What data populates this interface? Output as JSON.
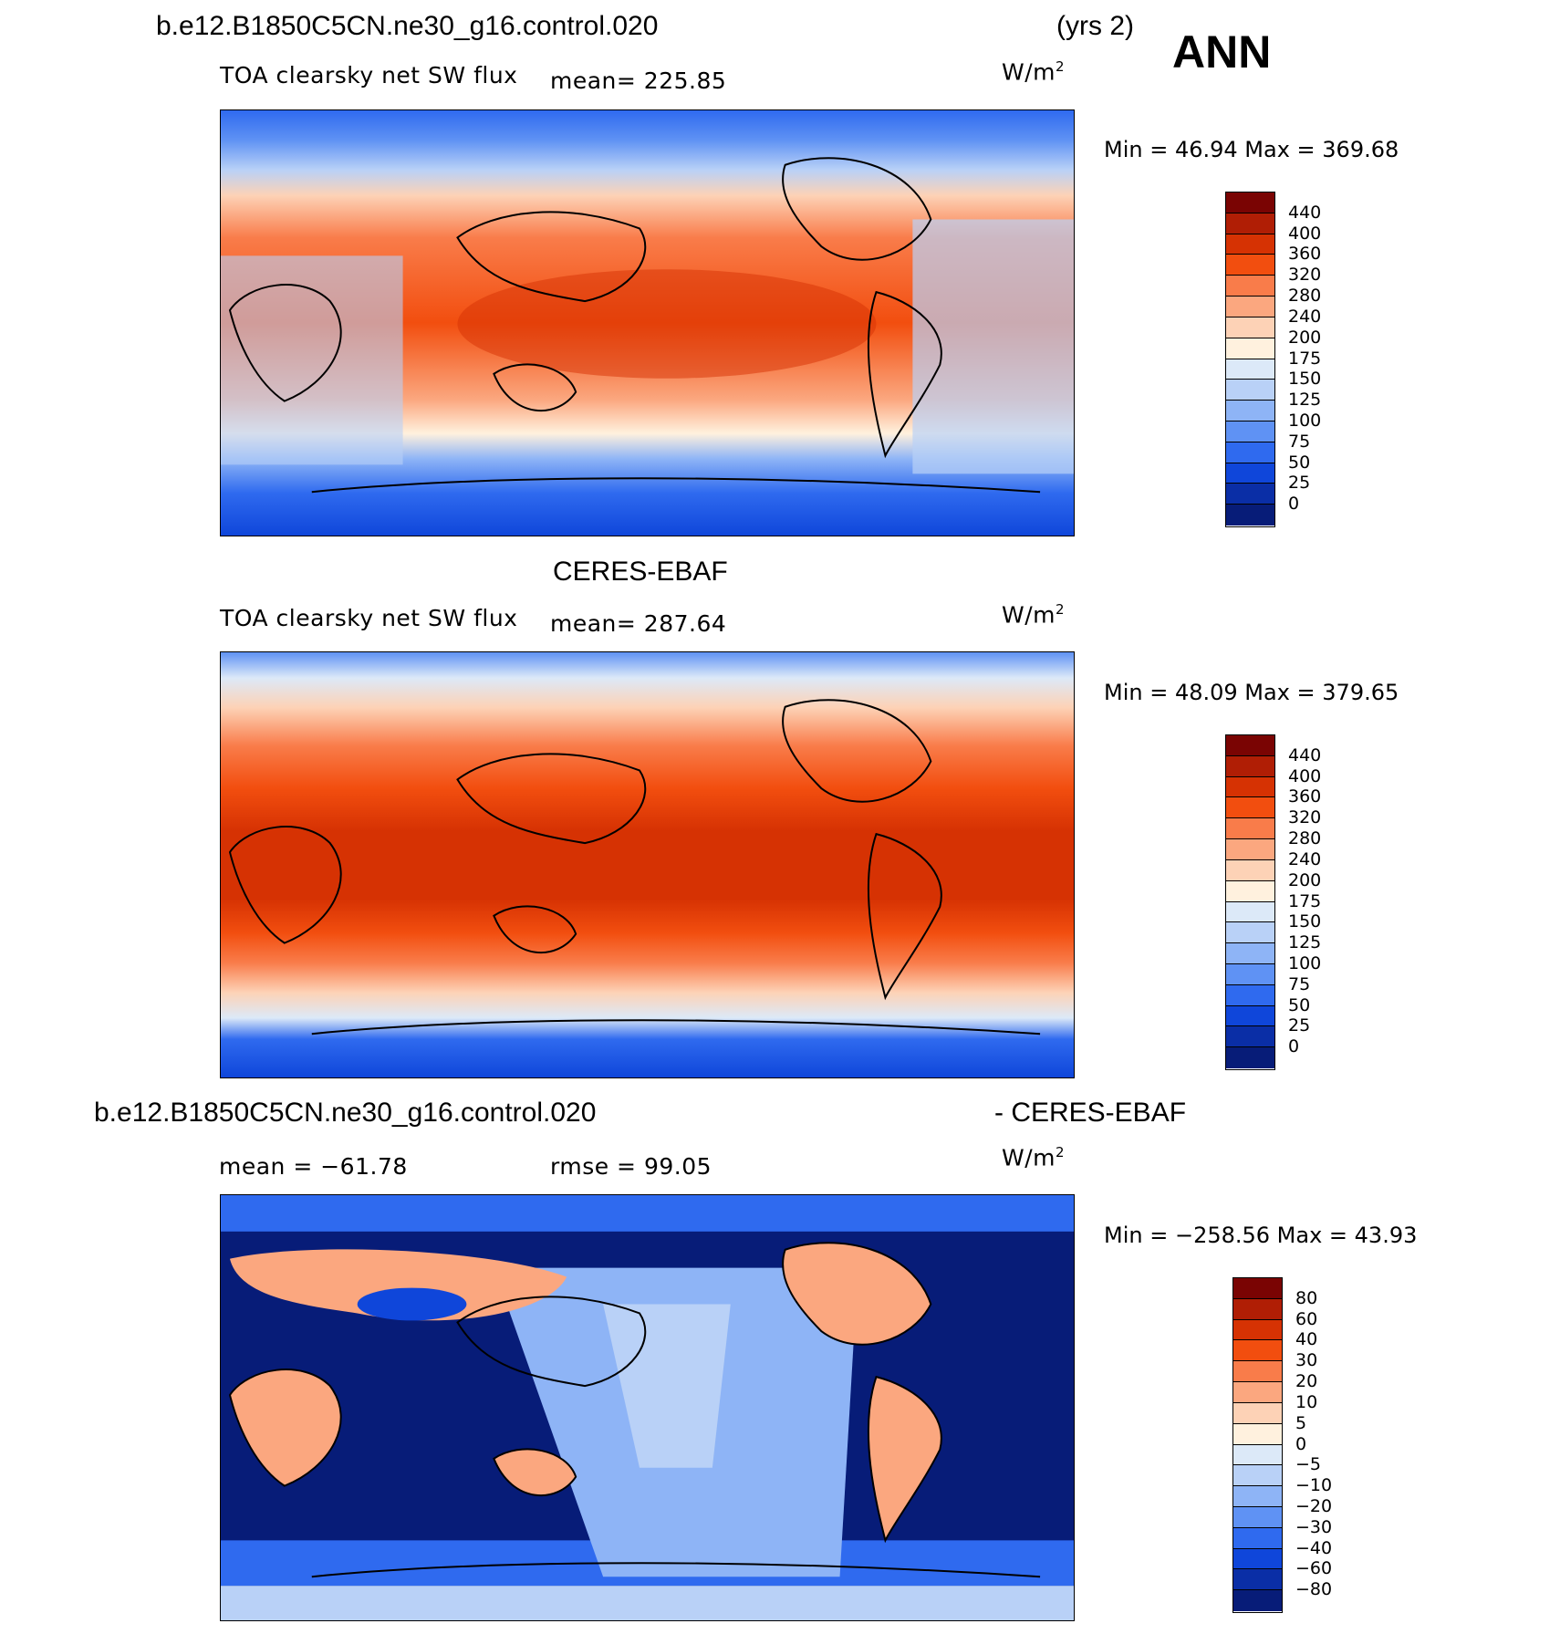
{
  "header": {
    "case": "b.e12.B1850C5CN.ne30_g16.control.020",
    "years": "(yrs 2)",
    "season": "ANN"
  },
  "panels": [
    {
      "id": "model",
      "title": "",
      "variable": "TOA clearsky net SW flux",
      "mean": "mean= 225.85",
      "units_base": "W/m",
      "units_exp": "2",
      "minmax": "Min =   46.94  Max =  369.68",
      "colorbar_ticks": [
        "440",
        "400",
        "360",
        "320",
        "280",
        "240",
        "200",
        "175",
        "150",
        "125",
        "100",
        "75",
        "50",
        "25",
        "0"
      ],
      "colors": [
        "#7a0403",
        "#b01e05",
        "#d63203",
        "#f24e0f",
        "#f97c4a",
        "#fba77f",
        "#fdd2b6",
        "#fff1de",
        "#dce9f8",
        "#b9d1f7",
        "#8eb4f6",
        "#5f92f4",
        "#2f6aef",
        "#0f46da",
        "#0a2ea6",
        "#071c78"
      ]
    },
    {
      "id": "obs",
      "title": "CERES-EBAF",
      "variable": "TOA clearsky net SW flux",
      "mean": "mean= 287.64",
      "units_base": "W/m",
      "units_exp": "2",
      "minmax": "Min =   48.09  Max =  379.65",
      "colorbar_ticks": [
        "440",
        "400",
        "360",
        "320",
        "280",
        "240",
        "200",
        "175",
        "150",
        "125",
        "100",
        "75",
        "50",
        "25",
        "0"
      ],
      "colors": [
        "#7a0403",
        "#b01e05",
        "#d63203",
        "#f24e0f",
        "#f97c4a",
        "#fba77f",
        "#fdd2b6",
        "#fff1de",
        "#dce9f8",
        "#b9d1f7",
        "#8eb4f6",
        "#5f92f4",
        "#2f6aef",
        "#0f46da",
        "#0a2ea6",
        "#071c78"
      ]
    },
    {
      "id": "diff",
      "title_left": "b.e12.B1850C5CN.ne30_g16.control.020",
      "title_right": "- CERES-EBAF",
      "mean": "mean = −61.78",
      "rmse": "rmse =   99.05",
      "units_base": "W/m",
      "units_exp": "2",
      "minmax": "Min = −258.56  Max =   43.93",
      "colorbar_ticks": [
        "80",
        "60",
        "40",
        "30",
        "20",
        "10",
        "5",
        "0",
        "−5",
        "−10",
        "−20",
        "−30",
        "−40",
        "−60",
        "−80"
      ],
      "colors": [
        "#7a0403",
        "#b01e05",
        "#d63203",
        "#f24e0f",
        "#f97c4a",
        "#fba77f",
        "#fdd2b6",
        "#fff1de",
        "#dce9f8",
        "#b9d1f7",
        "#8eb4f6",
        "#5f92f4",
        "#2f6aef",
        "#0f46da",
        "#0a2ea6",
        "#071c78"
      ]
    }
  ]
}
